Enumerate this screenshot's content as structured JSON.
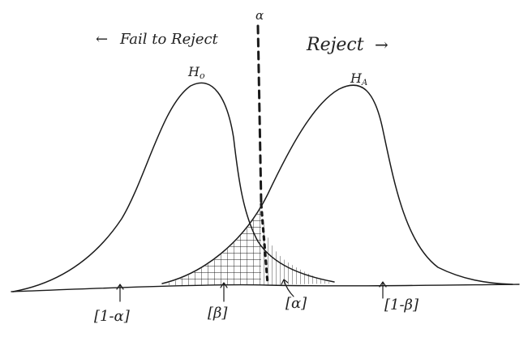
{
  "labels": {
    "fail_to_reject": "Fail to Reject",
    "reject": "Reject",
    "h0": "H",
    "h0_sub": "o",
    "ha": "H",
    "ha_sub": "A",
    "alpha_top": "α",
    "one_minus_alpha": "[1-α]",
    "beta": "[β]",
    "alpha_bracket": "[α]",
    "one_minus_beta": "[1-β]"
  },
  "arrows": {
    "left": "←",
    "right": "→"
  },
  "colors": {
    "ink": "#1a1a1a",
    "background": "#ffffff"
  }
}
